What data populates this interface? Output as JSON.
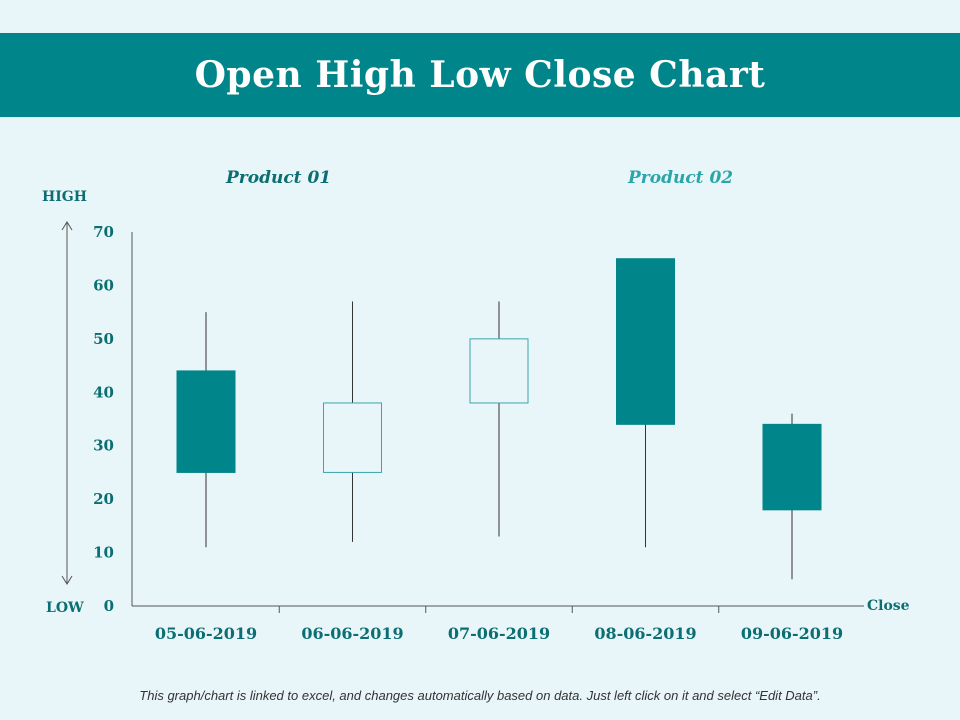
{
  "title": "Open High Low Close Chart",
  "footnote": "This graph/chart is linked to excel, and changes automatically based on data. Just left click on it and select “Edit Data”.",
  "colors": {
    "title_band": "#00858a",
    "filled_candle": "#00858a",
    "hollow_candle_stroke": "#3aa7ad",
    "product_01": "#0b6e72",
    "product_02": "#2aa6a8",
    "axis_text": "#0b6e72",
    "background": "#e8f6f9"
  },
  "chart_data": {
    "type": "candlestick",
    "groups": [
      {
        "name": "Product 01"
      },
      {
        "name": "Product 02"
      }
    ],
    "high_label": "HIGH",
    "low_label": "LOW",
    "x_end_label": "Close",
    "yticks": [
      0,
      10,
      20,
      30,
      40,
      50,
      60,
      70
    ],
    "ylim": [
      0,
      70
    ],
    "categories": [
      "05-06-2019",
      "06-06-2019",
      "07-06-2019",
      "08-06-2019",
      "09-06-2019"
    ],
    "candles": [
      {
        "date": "05-06-2019",
        "open": 44,
        "close": 25,
        "high": 55,
        "low": 11,
        "filled": true
      },
      {
        "date": "06-06-2019",
        "open": 25,
        "close": 38,
        "high": 57,
        "low": 12,
        "filled": false
      },
      {
        "date": "07-06-2019",
        "open": 38,
        "close": 50,
        "high": 57,
        "low": 13,
        "filled": false
      },
      {
        "date": "08-06-2019",
        "open": 65,
        "close": 34,
        "high": 65,
        "low": 11,
        "filled": true
      },
      {
        "date": "09-06-2019",
        "open": 34,
        "close": 18,
        "high": 36,
        "low": 5,
        "filled": true
      }
    ]
  }
}
